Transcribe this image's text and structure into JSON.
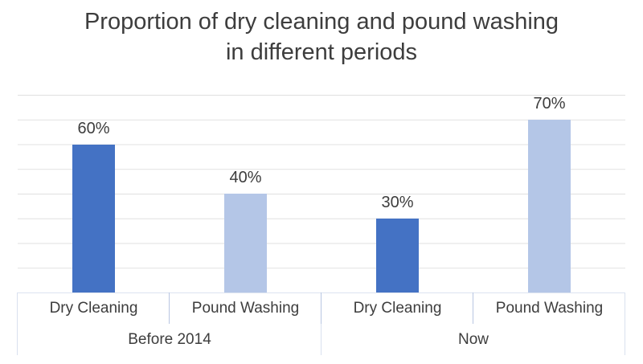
{
  "chart_data": {
    "type": "bar",
    "title": "Proportion of dry cleaning and pound washing in different periods",
    "x_groups": [
      {
        "label": "Before 2014",
        "bars": [
          {
            "category": "Dry Cleaning",
            "value": 60,
            "data_label": "60%",
            "color": "#4472c4"
          },
          {
            "category": "Pound Washing",
            "value": 40,
            "data_label": "40%",
            "color": "#b4c6e7"
          }
        ]
      },
      {
        "label": "Now",
        "bars": [
          {
            "category": "Dry Cleaning",
            "value": 30,
            "data_label": "30%",
            "color": "#4472c4"
          },
          {
            "category": "Pound Washing",
            "value": 70,
            "data_label": "70%",
            "color": "#b4c6e7"
          }
        ]
      }
    ],
    "ylim": [
      0,
      80
    ],
    "gridline_step": 10,
    "y_axis_labels_visible": false,
    "grid": true,
    "legend": "none",
    "colors": {
      "dry_cleaning_series": "#4472c4",
      "pound_washing_series": "#b4c6e7",
      "gridline": "#e0e0e0",
      "axis_line": "#dce3f0",
      "text": "#3d3d3d"
    }
  }
}
